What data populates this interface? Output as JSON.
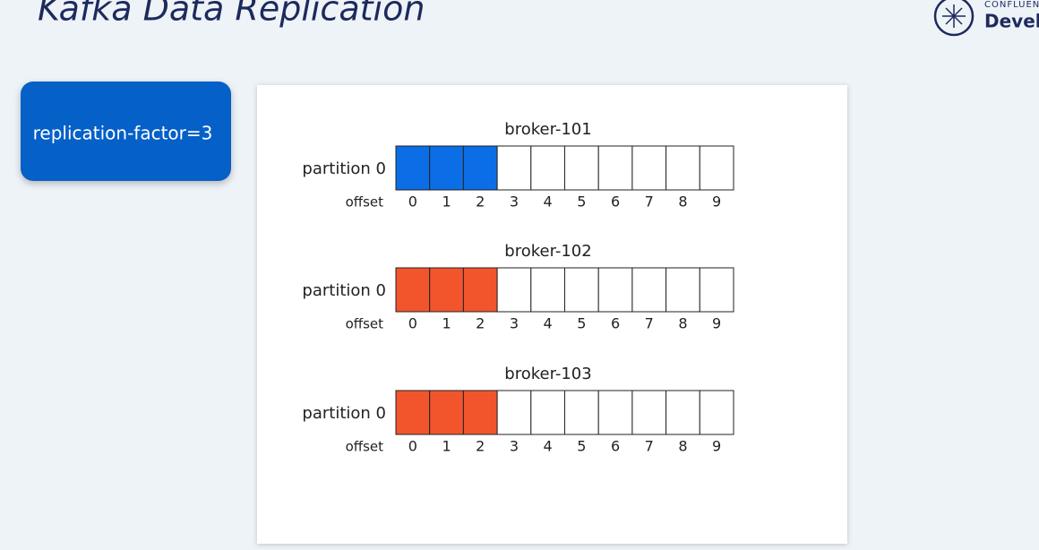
{
  "header": {
    "title": "Kafka Data Replication",
    "brand_top": "CONFLUENT",
    "brand_bottom": "Devel"
  },
  "setting": {
    "label": "replication-factor=3"
  },
  "brokers": [
    {
      "name": "broker-101",
      "partition": "partition 0",
      "offset_label": "offset",
      "offsets": [
        0,
        1,
        2,
        3,
        4,
        5,
        6,
        7,
        8,
        9
      ],
      "written": 3,
      "color": "#0b6ee6"
    },
    {
      "name": "broker-102",
      "partition": "partition 0",
      "offset_label": "offset",
      "offsets": [
        0,
        1,
        2,
        3,
        4,
        5,
        6,
        7,
        8,
        9
      ],
      "written": 3,
      "color": "#f2552c"
    },
    {
      "name": "broker-103",
      "partition": "partition 0",
      "offset_label": "offset",
      "offsets": [
        0,
        1,
        2,
        3,
        4,
        5,
        6,
        7,
        8,
        9
      ],
      "written": 3,
      "color": "#f2552c"
    }
  ]
}
